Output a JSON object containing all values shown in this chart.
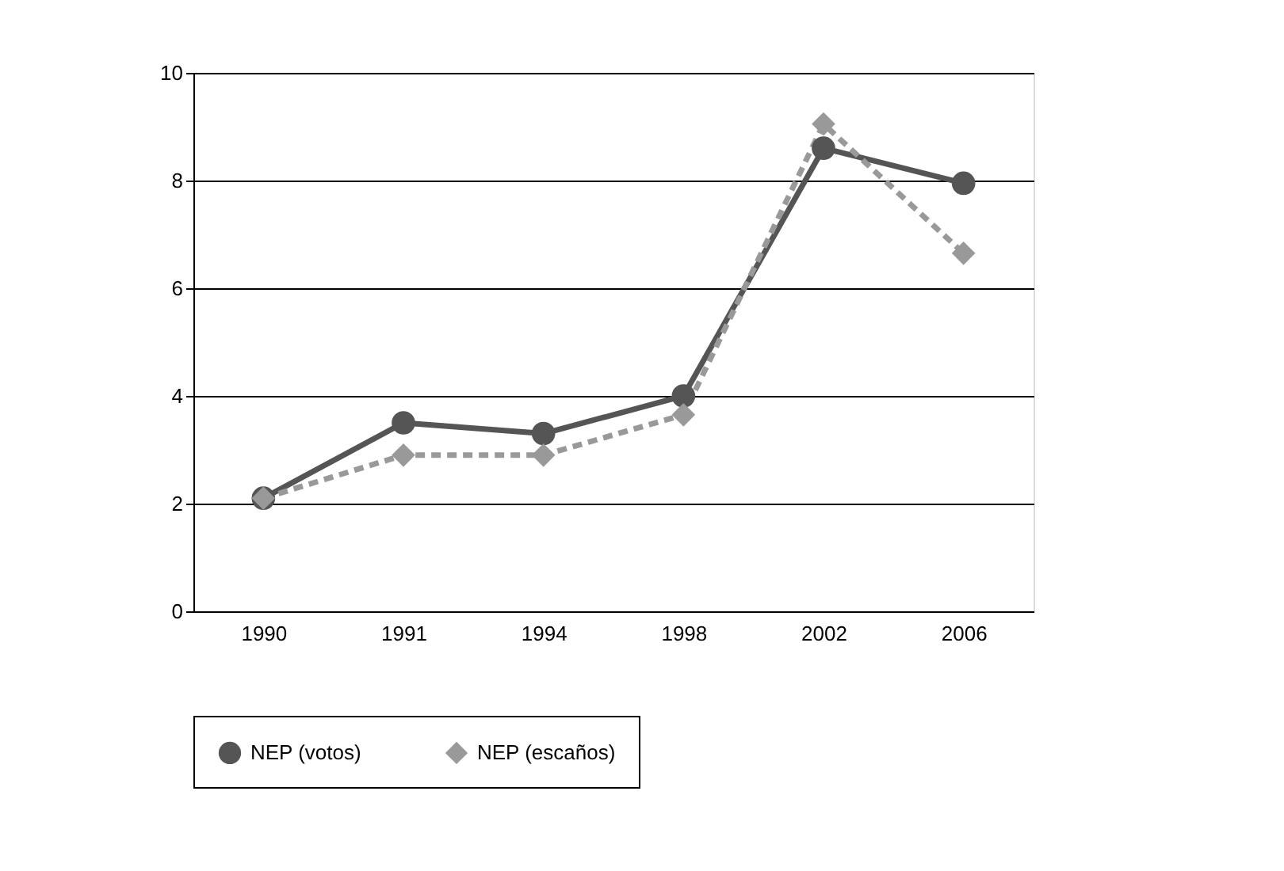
{
  "chart_data": {
    "type": "line",
    "categories": [
      "1990",
      "1991",
      "1994",
      "1998",
      "2002",
      "2006"
    ],
    "series": [
      {
        "name": "NEP (votos)",
        "color": "#555555",
        "marker": "circle",
        "line_style": "solid",
        "values": [
          2.1,
          3.5,
          3.3,
          4.0,
          8.6,
          7.95
        ]
      },
      {
        "name": "NEP (escaños)",
        "color": "#999999",
        "marker": "diamond",
        "line_style": "dashed",
        "values": [
          2.1,
          2.9,
          2.9,
          3.65,
          9.05,
          6.65
        ]
      }
    ],
    "ylim": [
      0,
      10
    ],
    "yticks": [
      0,
      2,
      4,
      6,
      8,
      10
    ],
    "grid": "y",
    "legend": "bottom"
  }
}
